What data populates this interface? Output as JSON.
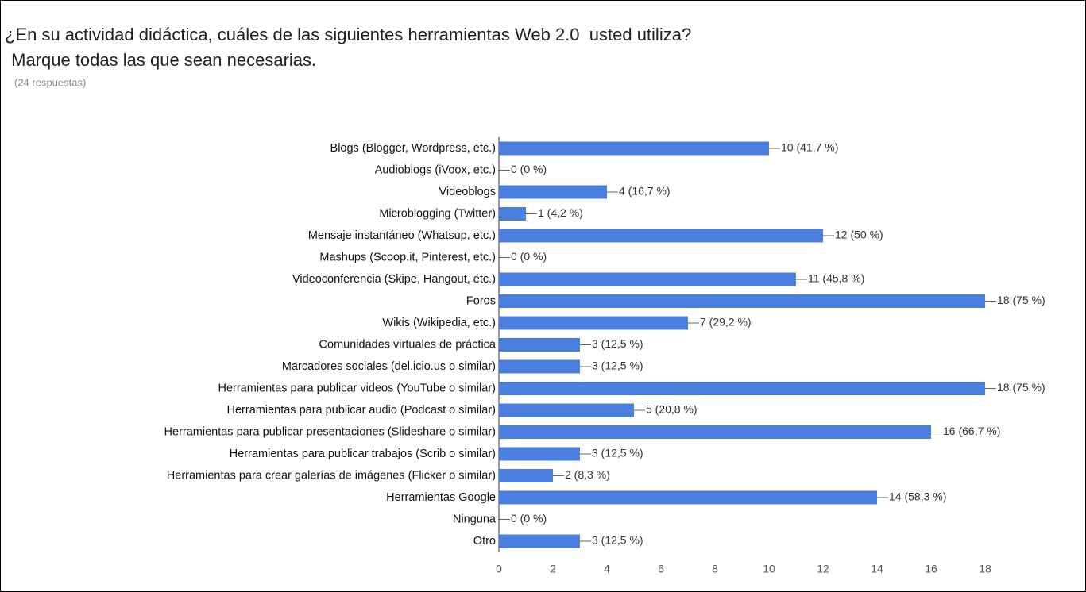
{
  "chart_data": {
    "type": "bar",
    "orientation": "horizontal",
    "title": [
      "¿En su actividad didáctica, cuáles de las siguientes herramientas Web 2.0  usted utiliza?",
      " Marque todas las que sean necesarias."
    ],
    "subtitle": "(24 respuestas)",
    "categories": [
      "Blogs (Blogger, Wordpress, etc.)",
      "Audioblogs (iVoox, etc.)",
      "Videoblogs",
      "Microblogging (Twitter)",
      "Mensaje instantáneo (Whatsup, etc.)",
      "Mashups (Scoop.it, Pinterest, etc.)",
      "Videoconferencia (Skipe, Hangout, etc.)",
      "Foros",
      "Wikis (Wikipedia, etc.)",
      "Comunidades virtuales de práctica",
      "Marcadores sociales (del.icio.us o similar)",
      "Herramientas para publicar videos (YouTube o similar)",
      "Herramientas para publicar audio (Podcast o similar)",
      "Herramientas para publicar presentaciones (Slideshare o similar)",
      "Herramientas para publicar trabajos (Scrib o similar)",
      "Herramientas para crear galerías de imágenes (Flicker o similar)",
      "Herramientas Google",
      "Ninguna",
      "Otro"
    ],
    "values": [
      10,
      0,
      4,
      1,
      12,
      0,
      11,
      18,
      7,
      3,
      3,
      18,
      5,
      16,
      3,
      2,
      14,
      0,
      3
    ],
    "value_labels": [
      "10 (41,7 %)",
      "0 (0 %)",
      "4 (16,7 %)",
      "1 (4,2 %)",
      "12 (50 %)",
      "0 (0 %)",
      "11 (45,8 %)",
      "18 (75 %)",
      "7 (29,2 %)",
      "3 (12,5 %)",
      "3 (12,5 %)",
      "18 (75 %)",
      "5 (20,8 %)",
      "16 (66,7 %)",
      "3 (12,5 %)",
      "2 (8,3 %)",
      "14 (58,3 %)",
      "0 (0 %)",
      "3 (12,5 %)"
    ],
    "color": "#4a7fe0",
    "xlim": [
      0,
      18
    ],
    "xticks": [
      0,
      2,
      4,
      6,
      8,
      10,
      12,
      14,
      16,
      18
    ]
  }
}
